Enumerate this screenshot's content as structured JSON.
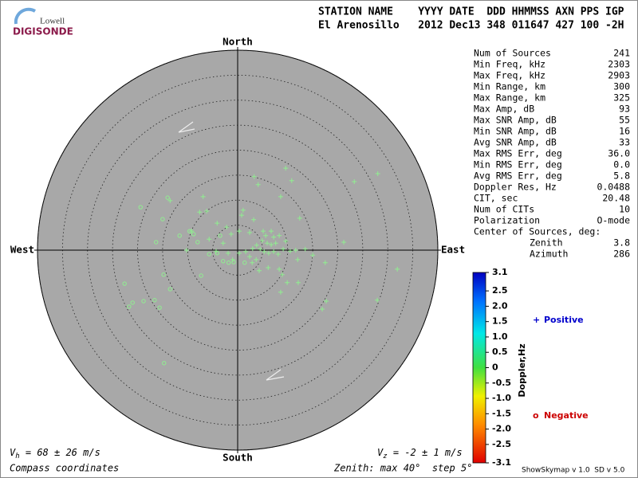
{
  "logo": {
    "top": "Lowell",
    "bottom": "DIGISONDE"
  },
  "header": {
    "line1": "STATION NAME    YYYY DATE  DDD HHMMSS AXN PPS IGP",
    "line2": "El Arenosillo   2012 Dec13 348 011647 427 100 -2H"
  },
  "stats": {
    "rows": [
      [
        "Num of Sources",
        "241"
      ],
      [
        "Min Freq, kHz",
        "2303"
      ],
      [
        "Max Freq, kHz",
        "2903"
      ],
      [
        "Min Range, km",
        "300"
      ],
      [
        "Max Range, km",
        "325"
      ],
      [
        "Max Amp, dB",
        "93"
      ],
      [
        "Max SNR Amp, dB",
        "55"
      ],
      [
        "Min SNR Amp, dB",
        "16"
      ],
      [
        "Avg SNR Amp, dB",
        "33"
      ],
      [
        "Max RMS Err, deg",
        "36.0"
      ],
      [
        "Min RMS Err, deg",
        "0.0"
      ],
      [
        "Avg RMS Err, deg",
        "5.8"
      ],
      [
        "Doppler Res, Hz",
        "0.0488"
      ],
      [
        "CIT, sec",
        "20.48"
      ],
      [
        "Num of CITs",
        "10"
      ],
      [
        "Polarization",
        "O-mode"
      ]
    ],
    "center_title": "Center of Sources, deg:",
    "center_rows": [
      [
        "Zenith",
        "3.8"
      ],
      [
        "Azimuth",
        "286"
      ]
    ]
  },
  "chart_data": {
    "type": "skymap",
    "north": "North",
    "south": "South",
    "east": "East",
    "west": "West",
    "rlim": [
      0,
      40
    ],
    "rticks": [
      5,
      10,
      15,
      20,
      25,
      30,
      35,
      40
    ],
    "series": [
      {
        "name": "Positive",
        "marker": "+",
        "color": "#90ee90",
        "legend_color": "#0000cc",
        "x": [
          3.3,
          9.6,
          28.0,
          23.3,
          4.1,
          10.8,
          -6.9,
          8.6,
          -13.5,
          1.1,
          -6.2,
          12.4,
          -4.1,
          0.8,
          3.2,
          -2.2,
          0.3,
          2.4,
          -1.3,
          5.1,
          6.7,
          5.6,
          7.2,
          8.3,
          4.9,
          5.9,
          6.7,
          7.6,
          9.6,
          3.8,
          3.0,
          4.5,
          5.3,
          6.2,
          7.2,
          8.1,
          9.1,
          10.5,
          11.6,
          13.5,
          1.6,
          2.4,
          3.7,
          0.3,
          -1.9,
          -4.3,
          -1.0,
          2.9,
          4.3,
          6.1,
          8.3,
          8.9,
          12.0,
          15.0,
          17.5,
          9.9,
          12.1,
          8.6,
          21.2,
          17.7,
          16.9,
          31.9,
          27.9,
          -9.2,
          -10.2,
          -5.7,
          -2.9,
          -7.6
        ],
        "values": [
          14.7,
          16.4,
          15.3,
          13.7,
          13.1,
          13.9,
          10.7,
          10.7,
          9.9,
          8.0,
          7.8,
          6.4,
          5.4,
          7.0,
          6.1,
          4.6,
          3.8,
          3.5,
          3.2,
          3.8,
          3.8,
          2.9,
          2.6,
          2.9,
          1.9,
          1.4,
          1.1,
          1.4,
          1.8,
          1.0,
          0.3,
          0.2,
          -0.3,
          -0.6,
          -0.3,
          -0.8,
          0.2,
          -0.2,
          0,
          0.2,
          -0.3,
          -1.3,
          -1.9,
          -0.6,
          -0.6,
          -0.2,
          -1.9,
          -2.5,
          -4.1,
          -3.5,
          -3.8,
          -4.9,
          -1.9,
          -1.0,
          -2.5,
          -6.5,
          -6.5,
          -8.4,
          1.6,
          -10.2,
          -11.8,
          -3.8,
          -10.0,
          3.8,
          0,
          2.2,
          1.4,
          7.6
        ]
      },
      {
        "name": "Negative",
        "marker": "o",
        "color": "#90ee90",
        "legend_color": "#cc0000",
        "x": [
          -14.0,
          -19.4,
          -15.0,
          -9.6,
          -8.8,
          -11.6,
          -16.3,
          -8.0,
          -3.5,
          -4.1,
          -2.9,
          -1.8,
          1.4,
          -5.7,
          -14.8,
          -22.6,
          -13.5,
          -16.6,
          -18.8,
          -21.0,
          -21.7,
          -15.6,
          -14.7,
          -7.3,
          -0.8
        ],
        "values": [
          10.5,
          8.6,
          6.2,
          3.8,
          3.2,
          2.9,
          1.6,
          1.6,
          2.9,
          -0.6,
          -2.2,
          -2.5,
          -2.5,
          -0.8,
          -4.9,
          -6.7,
          -7.8,
          -10.0,
          -10.2,
          -10.5,
          -11.3,
          -11.5,
          -22.6,
          -5.1,
          -2.4
        ]
      }
    ],
    "colorbar": {
      "label": "Doppler,Hz",
      "lim": [
        -3.1,
        3.1
      ],
      "ticks": [
        3.1,
        2.5,
        {
          "value": 2,
          "label": "2.0"
        },
        1.5,
        {
          "value": 1,
          "label": "1.0"
        },
        0.5,
        0,
        -0.5,
        {
          "value": -1,
          "label": "-1.0"
        },
        -1.5,
        {
          "value": -2,
          "label": "-2.0"
        },
        -2.5,
        -3.1
      ]
    }
  },
  "footer": {
    "vh": {
      "symbol": "V",
      "sub": "h",
      "text": " = 68 ± 26 m/s"
    },
    "vz": {
      "symbol": "V",
      "sub": "z",
      "text": " = -2 ± 1 m/s"
    },
    "coords": "Compass coordinates",
    "zenith": "Zenith: max 40°  step 5°",
    "version": "ShowSkymap v 1.0  SD v 5.0"
  }
}
